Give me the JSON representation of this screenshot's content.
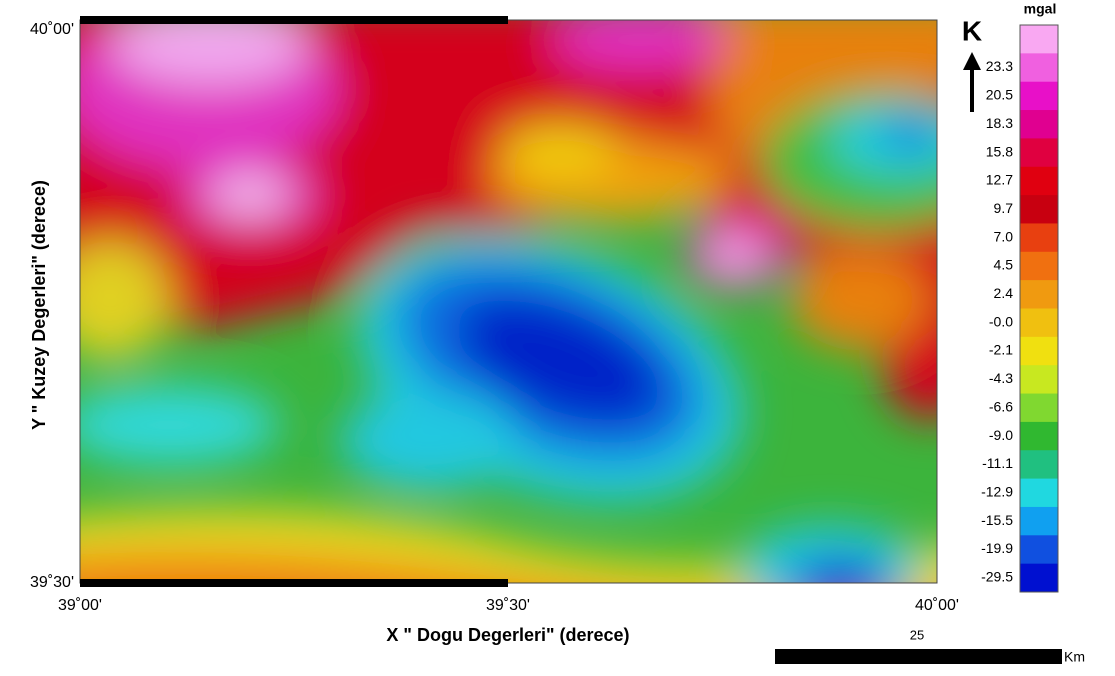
{
  "map": {
    "y_axis_title": "Y \" Kuzey  Degerleri\" (derece)",
    "x_axis_title": "X \" Dogu Degerleri\" (derece)",
    "y_ticks": [
      "40˚00'",
      "39˚30'"
    ],
    "x_ticks": [
      "39˚00'",
      "39˚30'",
      "40˚00'"
    ],
    "north_label": "K",
    "legend": {
      "unit": "mgal",
      "labels": [
        "23.3",
        "20.5",
        "18.3",
        "15.8",
        "12.7",
        "9.7",
        "7.0",
        "4.5",
        "2.4",
        "-0.0",
        "-2.1",
        "-4.3",
        "-6.6",
        "-9.0",
        "-11.1",
        "-12.9",
        "-15.5",
        "-19.9",
        "-29.5"
      ],
      "colors": [
        "#f9a8f2",
        "#f060e0",
        "#e810c8",
        "#e00090",
        "#e00040",
        "#e00010",
        "#c80010",
        "#e84010",
        "#f07010",
        "#f09a10",
        "#f0c010",
        "#f0e010",
        "#c8e820",
        "#80d830",
        "#30b830",
        "#20c080",
        "#20d8e0",
        "#10a0f0",
        "#1050e0",
        "#0010d0"
      ]
    },
    "scale": {
      "label": "25",
      "unit": "Km"
    }
  }
}
